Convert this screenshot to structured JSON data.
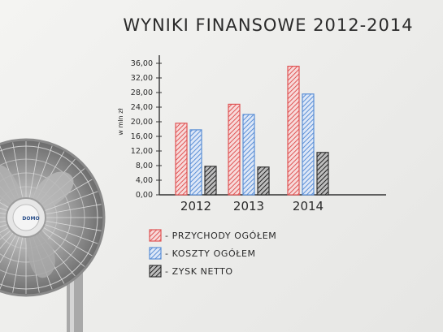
{
  "chart_data": {
    "type": "bar",
    "title": "WYNIKI FINANSOWE 2012-2014",
    "ylabel": "w mln zł",
    "categories": [
      "2012",
      "2013",
      "2014"
    ],
    "ylim": [
      0,
      36
    ],
    "yticks": [
      "0,00",
      "4,00",
      "8,00",
      "12,00",
      "16,00",
      "20,00",
      "24,00",
      "28,00",
      "32,00",
      "36,00"
    ],
    "series": [
      {
        "name": "- PRZYCHODY OGÓŁEM",
        "values": [
          19.6,
          24.8,
          35.2
        ],
        "color": "#e05555"
      },
      {
        "name": "- KOSZTY OGÓŁEM",
        "values": [
          17.8,
          22.0,
          27.6
        ],
        "color": "#5b8fd6"
      },
      {
        "name": "- ZYSK NETTO",
        "values": [
          7.8,
          7.6,
          11.6
        ],
        "color": "#333333"
      }
    ],
    "grid": false,
    "legend": "bottom"
  },
  "fan": {
    "brand": "DOMO"
  }
}
